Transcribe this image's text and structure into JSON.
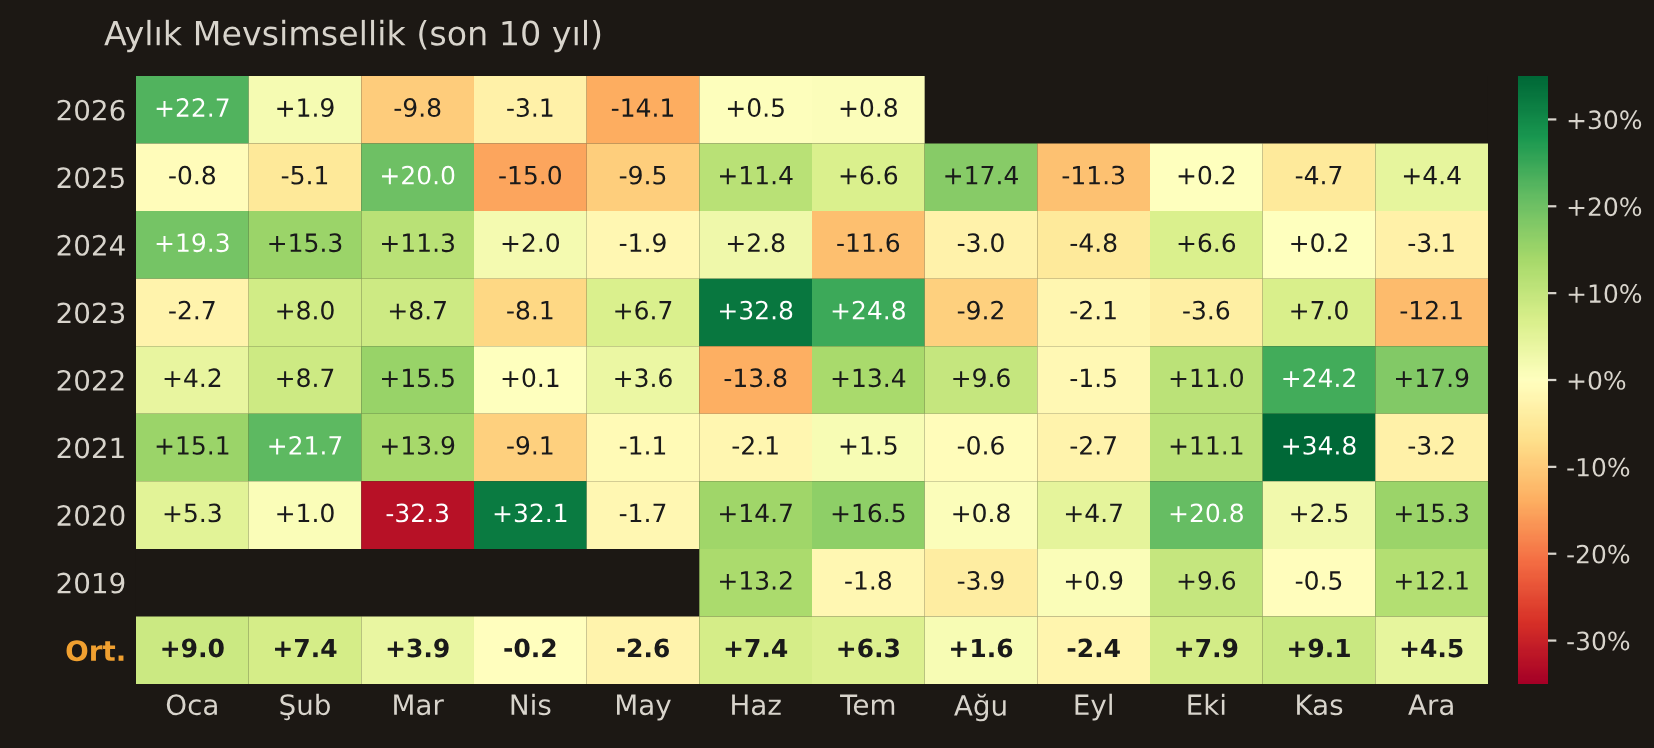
{
  "chart_data": {
    "type": "heatmap",
    "title": "Aylık Mevsimsellik (son 10 yıl)",
    "categories": [
      "Oca",
      "Şub",
      "Mar",
      "Nis",
      "May",
      "Haz",
      "Tem",
      "Ağu",
      "Eyl",
      "Eki",
      "Kas",
      "Ara"
    ],
    "y_categories": [
      "2026",
      "2025",
      "2024",
      "2023",
      "2022",
      "2021",
      "2020",
      "2019",
      "Ort."
    ],
    "cells": [
      [
        22.7,
        1.9,
        -9.8,
        -3.1,
        -14.1,
        0.5,
        0.8,
        null,
        null,
        null,
        null,
        null
      ],
      [
        -0.8,
        -5.1,
        20.0,
        -15.0,
        -9.5,
        11.4,
        6.6,
        17.4,
        -11.3,
        0.2,
        -4.7,
        4.4
      ],
      [
        19.3,
        15.3,
        11.3,
        2.0,
        -1.9,
        2.8,
        -11.6,
        -3.0,
        -4.8,
        6.6,
        0.2,
        -3.1
      ],
      [
        -2.7,
        8.0,
        8.7,
        -8.1,
        6.7,
        32.8,
        24.8,
        -9.2,
        -2.1,
        -3.6,
        7.0,
        -12.1
      ],
      [
        4.2,
        8.7,
        15.5,
        0.1,
        3.6,
        -13.8,
        13.4,
        9.6,
        -1.5,
        11.0,
        24.2,
        17.9
      ],
      [
        15.1,
        21.7,
        13.9,
        -9.1,
        -1.1,
        -2.1,
        1.5,
        -0.6,
        -2.7,
        11.1,
        34.8,
        -3.2
      ],
      [
        5.3,
        1.0,
        -32.3,
        32.1,
        -1.7,
        14.7,
        16.5,
        0.8,
        4.7,
        20.8,
        2.5,
        15.3
      ],
      [
        null,
        null,
        null,
        null,
        null,
        13.2,
        -1.8,
        -3.9,
        0.9,
        9.6,
        -0.5,
        12.1
      ],
      [
        9.0,
        7.4,
        3.9,
        -0.2,
        -2.6,
        7.4,
        6.3,
        1.6,
        -2.4,
        7.9,
        9.1,
        4.5
      ]
    ],
    "cell_labels": [
      [
        "+22.7",
        "+1.9",
        "-9.8",
        "-3.1",
        "-14.1",
        "+0.5",
        "+0.8",
        null,
        null,
        null,
        null,
        null
      ],
      [
        "-0.8",
        "-5.1",
        "+20.0",
        "-15.0",
        "-9.5",
        "+11.4",
        "+6.6",
        "+17.4",
        "-11.3",
        "+0.2",
        "-4.7",
        "+4.4"
      ],
      [
        "+19.3",
        "+15.3",
        "+11.3",
        "+2.0",
        "-1.9",
        "+2.8",
        "-11.6",
        "-3.0",
        "-4.8",
        "+6.6",
        "+0.2",
        "-3.1"
      ],
      [
        "-2.7",
        "+8.0",
        "+8.7",
        "-8.1",
        "+6.7",
        "+32.8",
        "+24.8",
        "-9.2",
        "-2.1",
        "-3.6",
        "+7.0",
        "-12.1"
      ],
      [
        "+4.2",
        "+8.7",
        "+15.5",
        "+0.1",
        "+3.6",
        "-13.8",
        "+13.4",
        "+9.6",
        "-1.5",
        "+11.0",
        "+24.2",
        "+17.9"
      ],
      [
        "+15.1",
        "+21.7",
        "+13.9",
        "-9.1",
        "-1.1",
        "-2.1",
        "+1.5",
        "-0.6",
        "-2.7",
        "+11.1",
        "+34.8",
        "-3.2"
      ],
      [
        "+5.3",
        "+1.0",
        "-32.3",
        "+32.1",
        "-1.7",
        "+14.7",
        "+16.5",
        "+0.8",
        "+4.7",
        "+20.8",
        "+2.5",
        "+15.3"
      ],
      [
        null,
        null,
        null,
        null,
        null,
        "+13.2",
        "-1.8",
        "-3.9",
        "+0.9",
        "+9.6",
        "-0.5",
        "+12.1"
      ],
      [
        "+9.0",
        "+7.4",
        "+3.9",
        "-0.2",
        "-2.6",
        "+7.4",
        "+6.3",
        "+1.6",
        "-2.4",
        "+7.9",
        "+9.1",
        "+4.5"
      ]
    ],
    "clim": [
      -35,
      35
    ],
    "cticks": [
      {
        "value": -30,
        "label": "-30%"
      },
      {
        "value": -20,
        "label": "-20%"
      },
      {
        "value": -10,
        "label": "-10%"
      },
      {
        "value": 0,
        "label": "+0%"
      },
      {
        "value": 10,
        "label": "+10%"
      },
      {
        "value": 20,
        "label": "+20%"
      },
      {
        "value": 30,
        "label": "+30%"
      }
    ]
  }
}
